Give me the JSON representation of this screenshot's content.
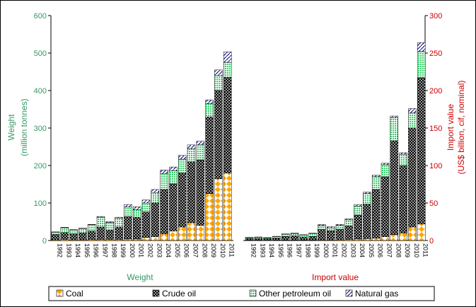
{
  "chart_data": {
    "type": "bar",
    "stacked": true,
    "legend_position": "bottom",
    "grid": false,
    "series_names": [
      "Coal",
      "Crude oil",
      "Other petroleum oil",
      "Natural gas"
    ],
    "colors": {
      "axis_left": "#339966",
      "axis_right": "#cc0000",
      "coal": "#ffa500",
      "crude": "#000000",
      "other": "#33cc66",
      "gas": "#000080"
    },
    "panels": [
      {
        "id": "weight",
        "xlabel": "Weight",
        "ylabel": "Weight",
        "ylabel2": "(million tonnes)",
        "ylim": [
          0,
          600
        ],
        "yticks": [
          0,
          100,
          200,
          300,
          400,
          500,
          600
        ],
        "categories": [
          "1992",
          "1993",
          "1994",
          "1995",
          "1996",
          "1997",
          "1998",
          "1999",
          "2000",
          "2001",
          "2002",
          "2003",
          "2004",
          "2005",
          "2006",
          "2007",
          "2008",
          "2009",
          "2010",
          "2011"
        ],
        "series": [
          {
            "name": "Coal",
            "values": [
              2,
              3,
              2,
              2,
              3,
              3,
              3,
              3,
              4,
              4,
              8,
              10,
              18,
              25,
              36,
              48,
              40,
              125,
              165,
              180
            ]
          },
          {
            "name": "Crude oil",
            "values": [
              14,
              18,
              16,
              18,
              22,
              33,
              25,
              33,
              60,
              58,
              68,
              90,
              118,
              126,
              144,
              162,
              175,
              205,
              235,
              255
            ]
          },
          {
            "name": "Other petroleum oil",
            "values": [
              6,
              13,
              10,
              12,
              17,
              26,
              20,
              24,
              25,
              20,
              24,
              28,
              42,
              35,
              37,
              35,
              40,
              35,
              40,
              40
            ]
          },
          {
            "name": "Natural gas",
            "values": [
              1,
              1,
              1,
              1,
              1,
              2,
              2,
              2,
              7,
              8,
              8,
              8,
              10,
              10,
              10,
              10,
              10,
              10,
              15,
              28
            ]
          }
        ]
      },
      {
        "id": "import_value",
        "xlabel": "Import value",
        "ylabel": "Import value",
        "ylabel2": "(US$ billion, cif, nominal)",
        "ylim": [
          0,
          300
        ],
        "yticks": [
          0,
          50,
          100,
          150,
          200,
          250,
          300
        ],
        "categories": [
          "1992",
          "1993",
          "1994",
          "1995",
          "1996",
          "1997",
          "1998",
          "1999",
          "2000",
          "2001",
          "2002",
          "2003",
          "2004",
          "2005",
          "2006",
          "2007",
          "2008",
          "2009",
          "2010",
          "2011"
        ],
        "series": [
          {
            "name": "Coal",
            "values": [
              0.5,
              0.5,
              0.3,
              0.4,
              0.5,
              0.5,
              0.5,
              0.5,
              0.8,
              0.8,
              1,
              1.5,
              2,
              2.5,
              3,
              5,
              8,
              10,
              18,
              22
            ]
          },
          {
            "name": "Crude oil",
            "values": [
              2,
              2,
              2,
              3,
              5,
              6,
              4,
              5,
              14,
              12,
              14,
              18,
              32,
              46,
              65,
              80,
              125,
              90,
              132,
              195
            ]
          },
          {
            "name": "Other petroleum oil",
            "values": [
              1.5,
              2,
              1.5,
              2,
              3,
              3,
              3,
              4,
              5,
              4,
              5,
              8,
              12,
              14,
              17,
              16,
              31,
              15,
              20,
              35
            ]
          },
          {
            "name": "Natural gas",
            "values": [
              0.2,
              0.2,
              0.2,
              0.2,
              0.3,
              0.3,
              0.3,
              0.3,
              1.5,
              1.5,
              1.5,
              1.5,
              2,
              2,
              2,
              2,
              2,
              2,
              6,
              12
            ]
          }
        ]
      }
    ]
  }
}
